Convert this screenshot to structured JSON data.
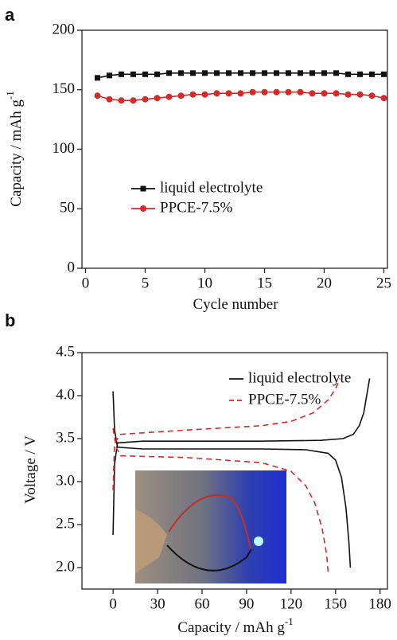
{
  "chart_data": [
    {
      "type": "line",
      "panel": "a",
      "x_label": "Cycle number",
      "y_label": "Capacity / mAh g",
      "y_label_sup": "-1",
      "xlim": [
        -0.3,
        25.3
      ],
      "ylim": [
        0,
        200
      ],
      "xticks": [
        0,
        5,
        10,
        15,
        20,
        25
      ],
      "yticks": [
        0,
        50,
        100,
        150,
        200
      ],
      "markers": true,
      "series": [
        {
          "name": "liquid electrolyte",
          "color": "#111111",
          "marker": "square",
          "x": [
            1,
            2,
            3,
            4,
            5,
            6,
            7,
            8,
            9,
            10,
            11,
            12,
            13,
            14,
            15,
            16,
            17,
            18,
            19,
            20,
            21,
            22,
            23,
            24,
            25
          ],
          "values": [
            160,
            162,
            163,
            163,
            163,
            163,
            164,
            164,
            164,
            164,
            164,
            164,
            164,
            164,
            164,
            164,
            164,
            164,
            164,
            164,
            164,
            163,
            163,
            163,
            163
          ]
        },
        {
          "name": "PPCE-7.5%",
          "color": "#d42a2a",
          "marker": "circle",
          "x": [
            1,
            2,
            3,
            4,
            5,
            6,
            7,
            8,
            9,
            10,
            11,
            12,
            13,
            14,
            15,
            16,
            17,
            18,
            19,
            20,
            21,
            22,
            23,
            24,
            25
          ],
          "values": [
            145,
            142,
            141,
            141,
            142,
            143,
            144,
            145,
            146,
            146,
            147,
            147,
            147,
            148,
            148,
            148,
            148,
            148,
            147,
            147,
            147,
            146,
            146,
            145,
            143
          ]
        }
      ]
    },
    {
      "type": "line",
      "panel": "b",
      "x_label": "Capacity / mAh g",
      "x_label_sup": "-1",
      "y_label": "Voltage / V",
      "xlim": [
        -21,
        185
      ],
      "ylim": [
        1.75,
        4.5
      ],
      "xticks": [
        0,
        30,
        60,
        90,
        120,
        150,
        180
      ],
      "yticks": [
        {
          "value": 2,
          "label": "2.0"
        },
        2.5,
        {
          "value": 3,
          "label": "3.0"
        },
        3.5,
        {
          "value": 4,
          "label": "4.0"
        },
        4.5
      ],
      "markers": false,
      "series": [
        {
          "name": "liquid electrolyte",
          "color": "#111111",
          "dashed": false,
          "x": [
            0,
            1,
            3,
            20,
            60,
            100,
            140,
            155,
            162,
            166,
            169,
            171,
            173,
            null,
            0,
            1,
            3,
            20,
            60,
            100,
            130,
            145,
            150,
            154,
            157,
            159,
            160
          ],
          "values": [
            2.38,
            3.2,
            3.45,
            3.47,
            3.47,
            3.47,
            3.48,
            3.5,
            3.55,
            3.65,
            3.8,
            4.0,
            4.2,
            null,
            4.05,
            3.6,
            3.4,
            3.38,
            3.38,
            3.38,
            3.37,
            3.33,
            3.25,
            3.05,
            2.7,
            2.3,
            2.0
          ]
        },
        {
          "name": "PPCE-7.5%",
          "color": "#d42a2a",
          "dashed": true,
          "x": [
            0,
            1,
            5,
            50,
            100,
            120,
            135,
            145,
            150,
            153,
            null,
            0,
            2,
            5,
            50,
            100,
            120,
            130,
            136,
            141,
            144,
            145
          ],
          "values": [
            2.9,
            3.45,
            3.55,
            3.6,
            3.65,
            3.7,
            3.8,
            3.95,
            4.08,
            4.2,
            null,
            3.62,
            3.4,
            3.3,
            3.28,
            3.22,
            3.12,
            2.95,
            2.75,
            2.45,
            2.15,
            1.95
          ]
        }
      ]
    }
  ]
}
